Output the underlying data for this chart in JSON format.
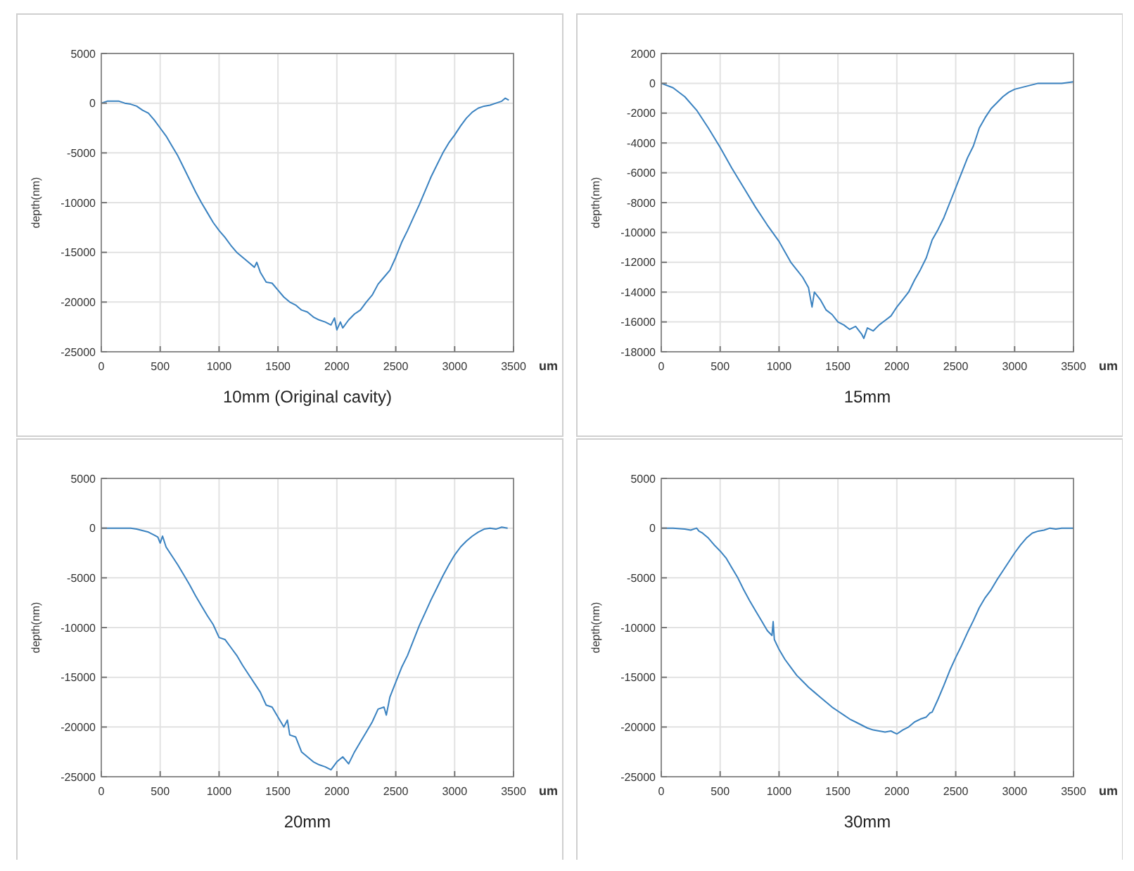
{
  "chart_data": [
    {
      "type": "line",
      "title": "10mm (Original cavity)",
      "xlabel": "um",
      "ylabel": "depth(nm)",
      "xlim": [
        0,
        3500
      ],
      "xticks": [
        0,
        500,
        1000,
        1500,
        2000,
        2500,
        3000,
        3500
      ],
      "ylim": [
        -25000,
        5000
      ],
      "yticks": [
        -25000,
        -20000,
        -15000,
        -10000,
        -5000,
        0,
        5000
      ],
      "grid": true,
      "series": [
        {
          "color": "#3a82c0",
          "x": [
            0,
            50,
            100,
            150,
            200,
            250,
            300,
            350,
            400,
            450,
            500,
            550,
            600,
            650,
            700,
            750,
            800,
            850,
            900,
            950,
            1000,
            1050,
            1100,
            1150,
            1200,
            1250,
            1300,
            1320,
            1350,
            1400,
            1450,
            1500,
            1550,
            1600,
            1650,
            1700,
            1750,
            1800,
            1850,
            1900,
            1950,
            1980,
            2000,
            2030,
            2050,
            2100,
            2150,
            2200,
            2250,
            2300,
            2350,
            2400,
            2450,
            2500,
            2550,
            2600,
            2650,
            2700,
            2750,
            2800,
            2850,
            2900,
            2950,
            3000,
            3050,
            3100,
            3150,
            3200,
            3250,
            3300,
            3350,
            3400,
            3430,
            3460
          ],
          "values": [
            0,
            200,
            200,
            200,
            0,
            -100,
            -300,
            -700,
            -1000,
            -1700,
            -2500,
            -3300,
            -4300,
            -5300,
            -6500,
            -7700,
            -8900,
            -10000,
            -11000,
            -12000,
            -12800,
            -13500,
            -14300,
            -15000,
            -15500,
            -16000,
            -16500,
            -16000,
            -17000,
            -18000,
            -18100,
            -18800,
            -19500,
            -20000,
            -20300,
            -20800,
            -21000,
            -21500,
            -21800,
            -22000,
            -22300,
            -21600,
            -22800,
            -22000,
            -22600,
            -21800,
            -21200,
            -20800,
            -20000,
            -19300,
            -18200,
            -17500,
            -16800,
            -15500,
            -14000,
            -12800,
            -11500,
            -10200,
            -8800,
            -7400,
            -6200,
            -5000,
            -4000,
            -3200,
            -2300,
            -1500,
            -900,
            -500,
            -300,
            -200,
            0,
            200,
            500,
            300
          ]
        }
      ]
    },
    {
      "type": "line",
      "title": "15mm",
      "xlabel": "um",
      "ylabel": "depth(nm)",
      "xlim": [
        0,
        3500
      ],
      "xticks": [
        0,
        500,
        1000,
        1500,
        2000,
        2500,
        3000,
        3500
      ],
      "ylim": [
        -18000,
        2000
      ],
      "yticks": [
        -18000,
        -16000,
        -14000,
        -12000,
        -10000,
        -8000,
        -6000,
        -4000,
        -2000,
        0,
        2000
      ],
      "grid": true,
      "series": [
        {
          "color": "#3a82c0",
          "x": [
            0,
            100,
            200,
            300,
            400,
            500,
            600,
            700,
            800,
            900,
            1000,
            1050,
            1100,
            1150,
            1200,
            1250,
            1280,
            1300,
            1350,
            1400,
            1450,
            1500,
            1550,
            1600,
            1650,
            1700,
            1720,
            1750,
            1800,
            1850,
            1900,
            1950,
            2000,
            2050,
            2100,
            2150,
            2200,
            2250,
            2300,
            2350,
            2400,
            2450,
            2500,
            2550,
            2600,
            2650,
            2700,
            2750,
            2800,
            2850,
            2900,
            2950,
            3000,
            3100,
            3200,
            3300,
            3400,
            3500
          ],
          "values": [
            0,
            -300,
            -900,
            -1800,
            -3000,
            -4300,
            -5700,
            -7000,
            -8300,
            -9500,
            -10600,
            -11300,
            -12000,
            -12500,
            -13000,
            -13700,
            -15000,
            -14000,
            -14500,
            -15200,
            -15500,
            -16000,
            -16200,
            -16500,
            -16300,
            -16800,
            -17100,
            -16400,
            -16600,
            -16200,
            -15900,
            -15600,
            -15000,
            -14500,
            -14000,
            -13200,
            -12500,
            -11700,
            -10500,
            -9800,
            -9000,
            -8000,
            -7000,
            -6000,
            -5000,
            -4200,
            -3000,
            -2300,
            -1700,
            -1300,
            -900,
            -600,
            -400,
            -200,
            0,
            0,
            0,
            100
          ]
        }
      ]
    },
    {
      "type": "line",
      "title": "20mm",
      "xlabel": "um",
      "ylabel": "depth(nm)",
      "xlim": [
        0,
        3500
      ],
      "xticks": [
        0,
        500,
        1000,
        1500,
        2000,
        2500,
        3000,
        3500
      ],
      "ylim": [
        -25000,
        5000
      ],
      "yticks": [
        -25000,
        -20000,
        -15000,
        -10000,
        -5000,
        0,
        5000
      ],
      "grid": true,
      "series": [
        {
          "color": "#3a82c0",
          "x": [
            0,
            100,
            200,
            250,
            300,
            400,
            450,
            480,
            500,
            520,
            550,
            600,
            650,
            700,
            750,
            800,
            850,
            900,
            950,
            1000,
            1050,
            1100,
            1150,
            1200,
            1250,
            1300,
            1350,
            1400,
            1450,
            1500,
            1550,
            1580,
            1600,
            1650,
            1700,
            1750,
            1800,
            1850,
            1900,
            1950,
            2000,
            2050,
            2100,
            2150,
            2200,
            2250,
            2300,
            2350,
            2400,
            2420,
            2450,
            2500,
            2550,
            2600,
            2650,
            2700,
            2750,
            2800,
            2850,
            2900,
            2950,
            3000,
            3050,
            3100,
            3150,
            3200,
            3250,
            3300,
            3350,
            3400,
            3450
          ],
          "values": [
            0,
            0,
            0,
            0,
            -100,
            -400,
            -700,
            -900,
            -1500,
            -800,
            -1900,
            -2800,
            -3700,
            -4700,
            -5700,
            -6800,
            -7800,
            -8800,
            -9700,
            -11000,
            -11200,
            -12000,
            -12800,
            -13800,
            -14700,
            -15600,
            -16500,
            -17800,
            -18000,
            -19000,
            -20000,
            -19300,
            -20800,
            -21000,
            -22500,
            -23000,
            -23500,
            -23800,
            -24000,
            -24300,
            -23500,
            -23000,
            -23700,
            -22500,
            -21500,
            -20500,
            -19500,
            -18200,
            -18000,
            -18800,
            -17000,
            -15500,
            -14000,
            -12800,
            -11300,
            -9800,
            -8500,
            -7200,
            -6000,
            -4800,
            -3700,
            -2700,
            -1900,
            -1300,
            -800,
            -400,
            -100,
            0,
            -100,
            100,
            0
          ]
        }
      ]
    },
    {
      "type": "line",
      "title": "30mm",
      "xlabel": "um",
      "ylabel": "depth(nm)",
      "xlim": [
        0,
        3500
      ],
      "xticks": [
        0,
        500,
        1000,
        1500,
        2000,
        2500,
        3000,
        3500
      ],
      "ylim": [
        -25000,
        5000
      ],
      "yticks": [
        -25000,
        -20000,
        -15000,
        -10000,
        -5000,
        0,
        5000
      ],
      "grid": true,
      "series": [
        {
          "color": "#3a82c0",
          "x": [
            0,
            100,
            200,
            250,
            300,
            320,
            350,
            400,
            450,
            500,
            550,
            600,
            650,
            700,
            750,
            800,
            850,
            900,
            940,
            950,
            960,
            1000,
            1050,
            1100,
            1150,
            1200,
            1250,
            1300,
            1350,
            1400,
            1450,
            1500,
            1550,
            1600,
            1650,
            1700,
            1750,
            1800,
            1850,
            1900,
            1950,
            2000,
            2050,
            2100,
            2150,
            2200,
            2250,
            2280,
            2300,
            2350,
            2400,
            2450,
            2500,
            2550,
            2600,
            2650,
            2700,
            2750,
            2800,
            2850,
            2900,
            2950,
            3000,
            3050,
            3100,
            3150,
            3200,
            3250,
            3300,
            3350,
            3400,
            3450,
            3500
          ],
          "values": [
            0,
            0,
            -100,
            -200,
            0,
            -300,
            -500,
            -1000,
            -1700,
            -2300,
            -3000,
            -4000,
            -5000,
            -6200,
            -7300,
            -8300,
            -9300,
            -10300,
            -10800,
            -9400,
            -11200,
            -12200,
            -13200,
            -14000,
            -14800,
            -15400,
            -16000,
            -16500,
            -17000,
            -17500,
            -18000,
            -18400,
            -18800,
            -19200,
            -19500,
            -19800,
            -20100,
            -20300,
            -20400,
            -20500,
            -20400,
            -20700,
            -20300,
            -20000,
            -19500,
            -19200,
            -19000,
            -18600,
            -18500,
            -17200,
            -15800,
            -14300,
            -13000,
            -11800,
            -10500,
            -9300,
            -8000,
            -7000,
            -6200,
            -5200,
            -4300,
            -3400,
            -2500,
            -1700,
            -1000,
            -500,
            -300,
            -200,
            0,
            -100,
            0,
            0,
            0
          ]
        }
      ]
    }
  ]
}
